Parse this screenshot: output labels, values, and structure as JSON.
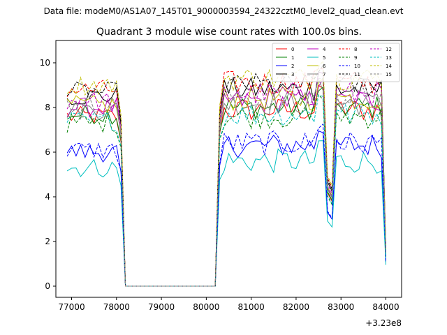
{
  "supertitle": "Data file: modeM0/AS1A07_145T01_9000003594_24322cztM0_level2_quad_clean.evt",
  "chart_data": {
    "type": "line",
    "title": "Quadrant 3 module wise count rates with 100.0s bins.",
    "xlabel": "",
    "ylabel": "",
    "x_offset_label": "+3.23e8",
    "xlim": [
      76650,
      84350
    ],
    "ylim": [
      -0.5,
      11.0
    ],
    "x_ticks": [
      77000,
      78000,
      79000,
      80000,
      81000,
      82000,
      83000,
      84000
    ],
    "y_ticks": [
      0,
      2,
      4,
      6,
      8,
      10
    ],
    "legend_position": "top-right",
    "series": [
      {
        "name": "0",
        "color": "#ff0000",
        "dash": "solid"
      },
      {
        "name": "1",
        "color": "#008000",
        "dash": "solid"
      },
      {
        "name": "2",
        "color": "#0000ff",
        "dash": "solid"
      },
      {
        "name": "3",
        "color": "#000000",
        "dash": "solid"
      },
      {
        "name": "4",
        "color": "#bf00bf",
        "dash": "solid"
      },
      {
        "name": "5",
        "color": "#00bfbf",
        "dash": "solid"
      },
      {
        "name": "6",
        "color": "#bfbf00",
        "dash": "solid"
      },
      {
        "name": "7",
        "color": "#808080",
        "dash": "solid"
      },
      {
        "name": "8",
        "color": "#ff0000",
        "dash": "dashed"
      },
      {
        "name": "9",
        "color": "#008000",
        "dash": "dashed"
      },
      {
        "name": "10",
        "color": "#0000ff",
        "dash": "dashed"
      },
      {
        "name": "11",
        "color": "#000000",
        "dash": "dashed"
      },
      {
        "name": "12",
        "color": "#bf00bf",
        "dash": "dashed"
      },
      {
        "name": "13",
        "color": "#00bfbf",
        "dash": "dashed"
      },
      {
        "name": "14",
        "color": "#bfbf00",
        "dash": "dashed"
      },
      {
        "name": "15",
        "color": "#808080",
        "dash": "dashed"
      }
    ],
    "base_levels": [
      7.6,
      7.7,
      6.0,
      8.5,
      8.0,
      5.3,
      8.1,
      7.9,
      8.8,
      7.3,
      6.1,
      8.7,
      8.3,
      7.4,
      9.0,
      8.1
    ],
    "segments": [
      {
        "x_start": 76900,
        "x_end": 78100,
        "step": 100
      },
      {
        "x_start": 80200,
        "x_end": 84000,
        "step": 100
      }
    ],
    "dip_regions": [
      {
        "center": 82700,
        "depth": 0.45
      },
      {
        "center": 84000,
        "depth": 0.85
      }
    ],
    "drop_points": [
      {
        "x": 78200,
        "y": 0
      },
      {
        "x": 80200,
        "y": 0
      }
    ]
  }
}
